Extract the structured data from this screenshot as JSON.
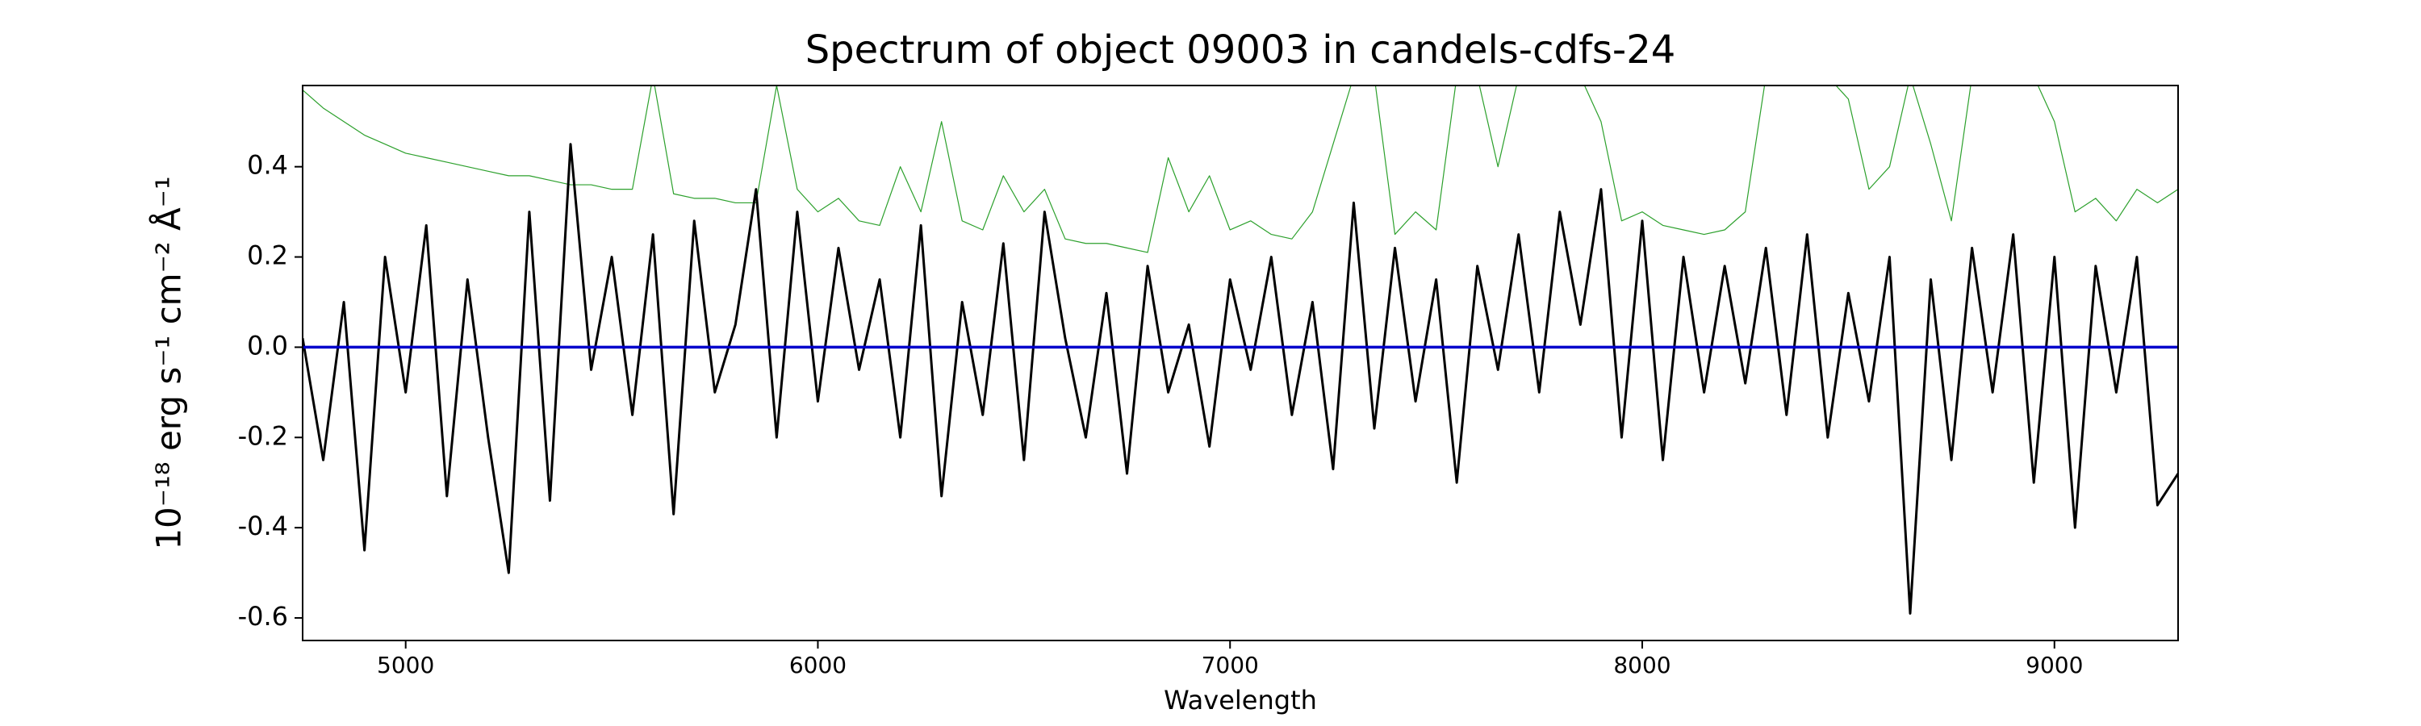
{
  "chart_data": {
    "type": "line",
    "title": "Spectrum of object 09003 in candels-cdfs-24",
    "xlabel": "Wavelength",
    "ylabel": "10⁻¹⁸ erg s⁻¹ cm⁻² Å⁻¹",
    "x": [
      4750,
      4800,
      4850,
      4900,
      4950,
      5000,
      5050,
      5100,
      5150,
      5200,
      5250,
      5300,
      5350,
      5400,
      5450,
      5500,
      5550,
      5600,
      5650,
      5700,
      5750,
      5800,
      5850,
      5900,
      5950,
      6000,
      6050,
      6100,
      6150,
      6200,
      6250,
      6300,
      6350,
      6400,
      6450,
      6500,
      6550,
      6600,
      6650,
      6700,
      6750,
      6800,
      6850,
      6900,
      6950,
      7000,
      7050,
      7100,
      7150,
      7200,
      7250,
      7300,
      7350,
      7400,
      7450,
      7500,
      7550,
      7600,
      7650,
      7700,
      7750,
      7800,
      7850,
      7900,
      7950,
      8000,
      8050,
      8100,
      8150,
      8200,
      8250,
      8300,
      8350,
      8400,
      8450,
      8500,
      8550,
      8600,
      8650,
      8700,
      8750,
      8800,
      8850,
      8900,
      8950,
      9000,
      9050,
      9100,
      9150,
      9200,
      9250,
      9300
    ],
    "series": [
      {
        "color": "#2ca02c",
        "width": 1.2,
        "values": [
          0.57,
          0.53,
          0.5,
          0.47,
          0.45,
          0.43,
          0.42,
          0.41,
          0.4,
          0.39,
          0.38,
          0.38,
          0.37,
          0.36,
          0.36,
          0.35,
          0.35,
          0.6,
          0.34,
          0.33,
          0.33,
          0.32,
          0.32,
          0.58,
          0.35,
          0.3,
          0.33,
          0.28,
          0.27,
          0.4,
          0.3,
          0.5,
          0.28,
          0.26,
          0.38,
          0.3,
          0.35,
          0.24,
          0.23,
          0.23,
          0.22,
          0.21,
          0.42,
          0.3,
          0.38,
          0.26,
          0.28,
          0.25,
          0.24,
          0.3,
          0.45,
          0.6,
          0.6,
          0.25,
          0.3,
          0.26,
          0.6,
          0.6,
          0.4,
          0.6,
          0.6,
          0.6,
          0.6,
          0.5,
          0.28,
          0.3,
          0.27,
          0.26,
          0.25,
          0.26,
          0.3,
          0.6,
          0.6,
          0.6,
          0.6,
          0.55,
          0.35,
          0.4,
          0.6,
          0.45,
          0.28,
          0.6,
          0.6,
          0.6,
          0.6,
          0.5,
          0.3,
          0.33,
          0.28,
          0.35,
          0.32,
          0.35
        ]
      },
      {
        "color": "#000000",
        "width": 3,
        "values": [
          0.02,
          -0.25,
          0.1,
          -0.45,
          0.2,
          -0.1,
          0.27,
          -0.33,
          0.15,
          -0.2,
          -0.5,
          0.3,
          -0.34,
          0.45,
          -0.05,
          0.2,
          -0.15,
          0.25,
          -0.37,
          0.28,
          -0.1,
          0.05,
          0.35,
          -0.2,
          0.3,
          -0.12,
          0.22,
          -0.05,
          0.15,
          -0.2,
          0.27,
          -0.33,
          0.1,
          -0.15,
          0.23,
          -0.25,
          0.3,
          0.02,
          -0.2,
          0.12,
          -0.28,
          0.18,
          -0.1,
          0.05,
          -0.22,
          0.15,
          -0.05,
          0.2,
          -0.15,
          0.1,
          -0.27,
          0.32,
          -0.18,
          0.22,
          -0.12,
          0.15,
          -0.3,
          0.18,
          -0.05,
          0.25,
          -0.1,
          0.3,
          0.05,
          0.35,
          -0.2,
          0.28,
          -0.25,
          0.2,
          -0.1,
          0.18,
          -0.08,
          0.22,
          -0.15,
          0.25,
          -0.2,
          0.12,
          -0.12,
          0.2,
          -0.59,
          0.15,
          -0.25,
          0.22,
          -0.1,
          0.25,
          -0.3,
          0.2,
          -0.4,
          0.18,
          -0.1,
          0.2,
          -0.35,
          -0.28
        ]
      },
      {
        "color": "#0000cc",
        "width": 3.5,
        "values": [
          0,
          0,
          0,
          0,
          0,
          0,
          0,
          0,
          0,
          0,
          0,
          0,
          0,
          0,
          0,
          0,
          0,
          0,
          0,
          0,
          0,
          0,
          0,
          0,
          0,
          0,
          0,
          0,
          0,
          0,
          0,
          0,
          0,
          0,
          0,
          0,
          0,
          0,
          0,
          0,
          0,
          0,
          0,
          0,
          0,
          0,
          0,
          0,
          0,
          0,
          0,
          0,
          0,
          0,
          0,
          0,
          0,
          0,
          0,
          0,
          0,
          0,
          0,
          0,
          0,
          0,
          0,
          0,
          0,
          0,
          0,
          0,
          0,
          0,
          0,
          0,
          0,
          0,
          0,
          0,
          0,
          0,
          0,
          0,
          0,
          0,
          0,
          0,
          0,
          0,
          0,
          0
        ]
      }
    ],
    "xlim": [
      4750,
      9300
    ],
    "ylim": [
      -0.65,
      0.58
    ],
    "xticks": [
      5000,
      6000,
      7000,
      8000,
      9000
    ],
    "yticks": [
      -0.6,
      -0.4,
      -0.2,
      {
        "value": 0,
        "label": "0.0"
      },
      0.2,
      0.4
    ]
  }
}
